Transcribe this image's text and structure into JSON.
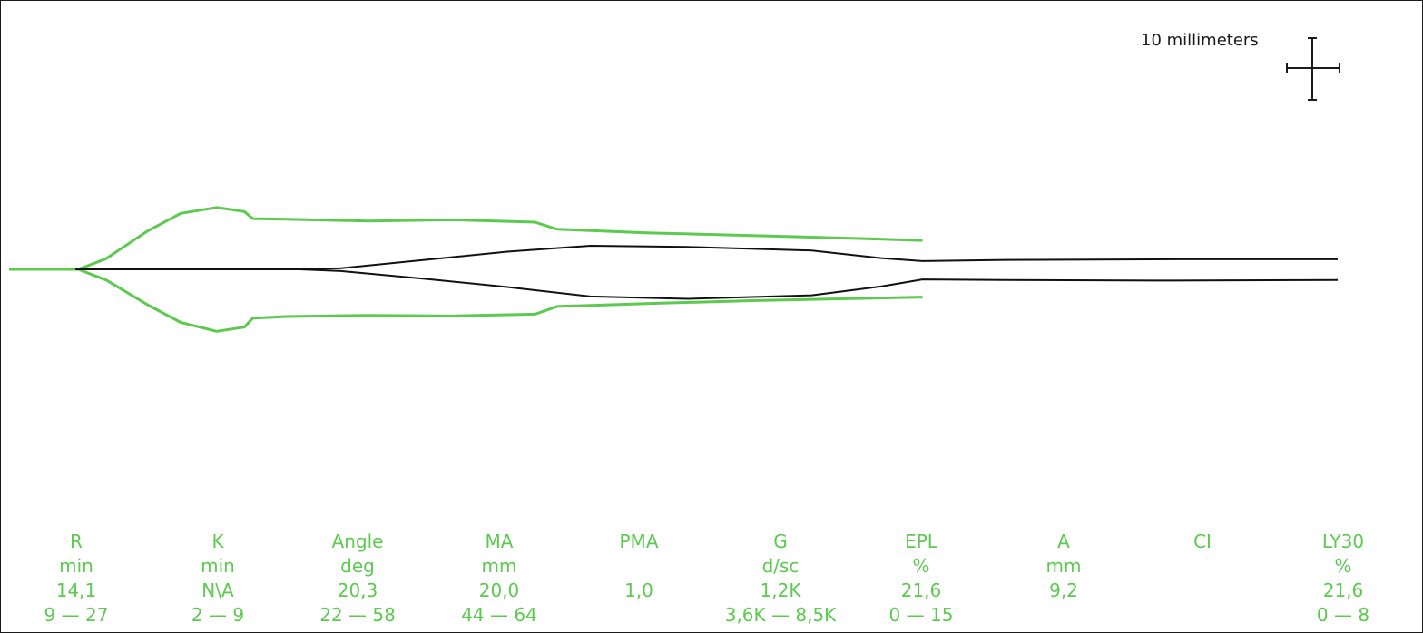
{
  "scale_bar": {
    "label": "10 millimeters"
  },
  "colors": {
    "reference": "#5cc94f",
    "trace": "#111111",
    "background": "#ffffff"
  },
  "chart_data": {
    "type": "line",
    "title": "",
    "xlabel": "",
    "ylabel": "",
    "grid": false,
    "series": [
      {
        "role": "reference-envelope",
        "color": "#5cc94f",
        "upper": [
          [
            0,
            0
          ],
          [
            0.25,
            0
          ],
          [
            0.35,
            1.8
          ],
          [
            0.5,
            6.5
          ],
          [
            0.62,
            9.5
          ],
          [
            0.75,
            10.5
          ],
          [
            0.85,
            9.8
          ],
          [
            0.88,
            8.6
          ],
          [
            1.0,
            8.5
          ],
          [
            1.3,
            8.2
          ],
          [
            1.6,
            8.4
          ],
          [
            1.9,
            8.0
          ],
          [
            1.98,
            6.8
          ],
          [
            2.3,
            6.2
          ],
          [
            2.7,
            5.7
          ],
          [
            3.1,
            5.2
          ],
          [
            3.3,
            4.9
          ]
        ],
        "lower": [
          [
            0,
            0
          ],
          [
            0.25,
            0
          ],
          [
            0.35,
            -1.8
          ],
          [
            0.5,
            -6.0
          ],
          [
            0.62,
            -9.0
          ],
          [
            0.75,
            -10.5
          ],
          [
            0.85,
            -9.8
          ],
          [
            0.88,
            -8.3
          ],
          [
            1.0,
            -8.0
          ],
          [
            1.3,
            -7.8
          ],
          [
            1.6,
            -7.9
          ],
          [
            1.9,
            -7.6
          ],
          [
            1.98,
            -6.3
          ],
          [
            2.3,
            -5.8
          ],
          [
            2.7,
            -5.3
          ],
          [
            3.1,
            -4.9
          ],
          [
            3.3,
            -4.7
          ]
        ]
      },
      {
        "role": "tracing",
        "color": "#111111",
        "upper": [
          [
            0.24,
            0
          ],
          [
            1.05,
            0
          ],
          [
            1.2,
            0.2
          ],
          [
            1.5,
            1.6
          ],
          [
            1.8,
            3.0
          ],
          [
            2.1,
            4.0
          ],
          [
            2.45,
            3.8
          ],
          [
            2.9,
            3.2
          ],
          [
            3.15,
            1.9
          ],
          [
            3.3,
            1.4
          ],
          [
            3.6,
            1.6
          ],
          [
            4.2,
            1.7
          ],
          [
            4.8,
            1.7
          ]
        ],
        "lower": [
          [
            0.24,
            0
          ],
          [
            1.05,
            0
          ],
          [
            1.2,
            -0.3
          ],
          [
            1.5,
            -1.6
          ],
          [
            1.8,
            -3.0
          ],
          [
            2.1,
            -4.6
          ],
          [
            2.45,
            -5.0
          ],
          [
            2.9,
            -4.4
          ],
          [
            3.15,
            -2.9
          ],
          [
            3.3,
            -1.7
          ],
          [
            3.6,
            -1.8
          ],
          [
            4.2,
            -1.9
          ],
          [
            4.8,
            -1.8
          ]
        ]
      }
    ],
    "parameters": [
      {
        "name": "R",
        "unit": "min",
        "value": "14,1",
        "range": "9 — 27"
      },
      {
        "name": "K",
        "unit": "min",
        "value": "N\\A",
        "range": "2 — 9"
      },
      {
        "name": "Angle",
        "unit": "deg",
        "value": "20,3",
        "range": "22 — 58"
      },
      {
        "name": "MA",
        "unit": "mm",
        "value": "20,0",
        "range": "44 — 64"
      },
      {
        "name": "PMA",
        "unit": "",
        "value": "1,0",
        "range": ""
      },
      {
        "name": "G",
        "unit": "d/sc",
        "value": "1,2K",
        "range": "3,6K — 8,5K"
      },
      {
        "name": "EPL",
        "unit": "%",
        "value": "21,6",
        "range": "0 — 15"
      },
      {
        "name": "A",
        "unit": "mm",
        "value": "9,2",
        "range": ""
      },
      {
        "name": "CI",
        "unit": "",
        "value": "",
        "range": ""
      },
      {
        "name": "LY30",
        "unit": "%",
        "value": "21,6",
        "range": "0 — 8"
      }
    ]
  }
}
